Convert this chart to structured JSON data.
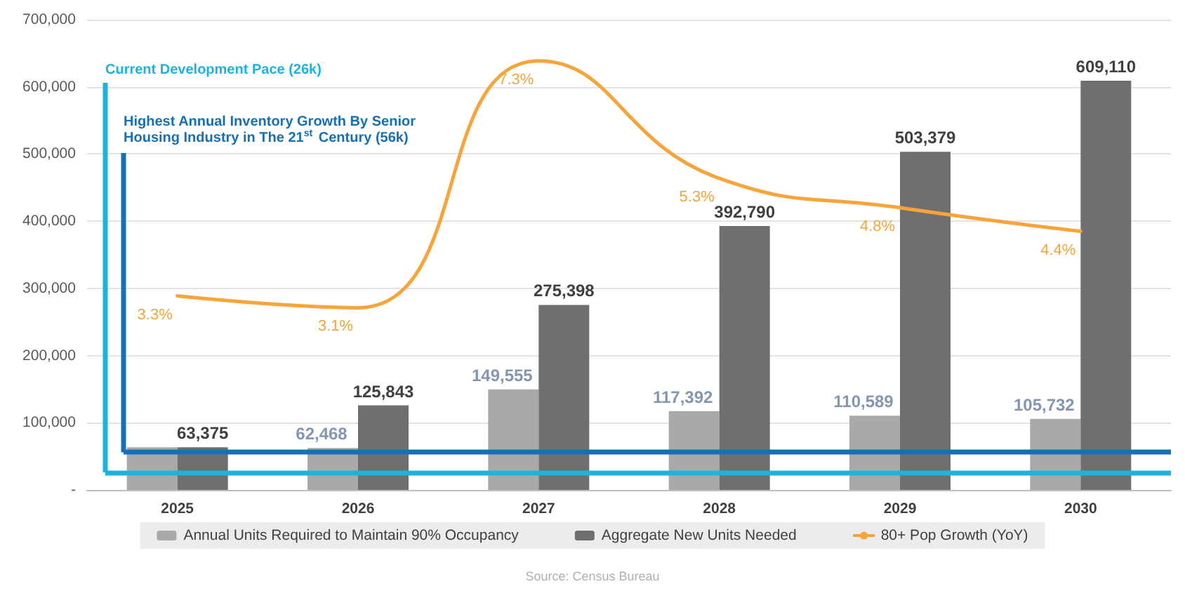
{
  "chart_data": {
    "type": "bar",
    "categories": [
      "2025",
      "2026",
      "2027",
      "2028",
      "2029",
      "2030"
    ],
    "series": [
      {
        "name": "Annual Units Required to Maintain 90% Occupancy",
        "color": "#a9a9a9",
        "values": [
          63375,
          62468,
          149555,
          117392,
          110589,
          105732
        ],
        "value_labels": [
          null,
          "62,468",
          "149,555",
          "117,392",
          "110,589",
          "105,732"
        ]
      },
      {
        "name": "Aggregate New Units Needed",
        "color": "#6f6f6f",
        "values": [
          63375,
          125843,
          275398,
          392790,
          503379,
          609110
        ],
        "value_labels": [
          "63,375",
          "125,843",
          "275,398",
          "392,790",
          "503,379",
          "609,110"
        ]
      },
      {
        "name": "80+ Pop Growth (YoY)",
        "type": "line",
        "axis": "y2",
        "color": "#f7a43a",
        "marker": "none",
        "values": [
          3.3,
          3.1,
          7.3,
          5.3,
          4.8,
          4.4
        ],
        "value_labels": [
          "3.3%",
          "3.1%",
          "7.3%",
          "5.3%",
          "4.8%",
          "4.4%"
        ]
      }
    ],
    "ylim": [
      0,
      700000
    ],
    "yticks": [
      {
        "value": 0,
        "label": "-"
      },
      {
        "value": 100000,
        "label": "100,000"
      },
      {
        "value": 200000,
        "label": "200,000"
      },
      {
        "value": 300000,
        "label": "300,000"
      },
      {
        "value": 400000,
        "label": "400,000"
      },
      {
        "value": 500000,
        "label": "500,000"
      },
      {
        "value": 600000,
        "label": "600,000"
      },
      {
        "value": 700000,
        "label": "700,000"
      }
    ],
    "grid": "y",
    "legend": "bottom",
    "ref_lines": [
      {
        "axis": "y",
        "value": 26000,
        "label": "Current Development Pace (26k)",
        "color": "#1db3df"
      },
      {
        "axis": "y",
        "value": 56000,
        "label": "Highest Annual Inventory Growth By Senior Housing Industry in The 21$^{st}$ Century (56k)",
        "color": "#1670b5"
      }
    ],
    "annotations": [
      "Source: Census Bureau"
    ]
  }
}
